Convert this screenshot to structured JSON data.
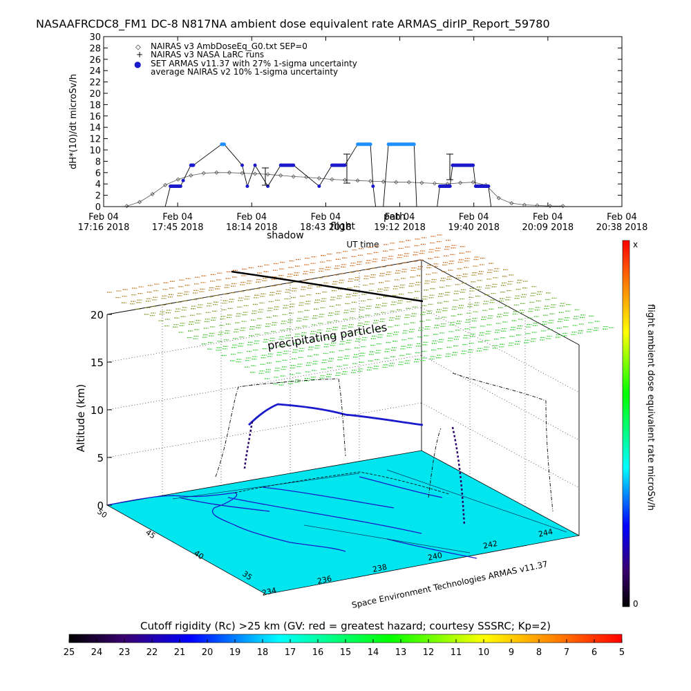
{
  "title": "NASAAFRCDC8_FM1 DC-8    N817NA ambient dose equivalent rate ARMAS_dirIP_Report_59780",
  "colors": {
    "nairas_v3": "#555555",
    "armas": "#1a1acc",
    "armas_high": "#1e90ff",
    "ground": "#00e5ee",
    "precip_high": "#d2691e",
    "precip_low": "#32cd32"
  },
  "chart_data": [
    {
      "type": "line",
      "title": "",
      "xlabel": "UT time",
      "ylabel": "dH*(10)/dt microSv/h",
      "ylim": [
        0,
        30
      ],
      "yticks": [
        "0",
        "2",
        "4",
        "6",
        "8",
        "10",
        "12",
        "14",
        "16",
        "18",
        "20",
        "22",
        "24",
        "26",
        "28",
        "30"
      ],
      "xticks": [
        {
          "date": "Feb 04",
          "time": "17:16  2018"
        },
        {
          "date": "Feb 04",
          "time": "17:45  2018"
        },
        {
          "date": "Feb 04",
          "time": "18:14  2018"
        },
        {
          "date": "Feb 04",
          "time": "18:43  2018"
        },
        {
          "date": "Feb 04",
          "time": "19:12  2018"
        },
        {
          "date": "Feb 04",
          "time": "19:40  2018"
        },
        {
          "date": "Feb 04",
          "time": "20:09  2018"
        },
        {
          "date": "Feb 04",
          "time": "20:38  2018"
        }
      ],
      "annotations": [
        "shadow",
        "flight",
        "path"
      ],
      "legend": [
        {
          "symbol": "◇",
          "text": "NAIRAS v3 AmbDoseEq_G0.txt SEP=0"
        },
        {
          "symbol": "+",
          "text": "NAIRAS v3 NASA LaRC runs"
        },
        {
          "symbol": "●",
          "text": "SET ARMAS v11.37 with 27% 1-sigma uncertainty"
        },
        {
          "symbol": "",
          "text": "average NAIRAS v2 10% 1-sigma uncertainty"
        }
      ],
      "series": [
        {
          "name": "NAIRAS v3 AmbDoseEq_G0.txt SEP=0",
          "x": [
            "17:25",
            "17:30",
            "17:35",
            "17:40",
            "17:45",
            "17:50",
            "17:55",
            "18:00",
            "18:05",
            "18:10",
            "18:15",
            "18:20",
            "18:25",
            "18:30",
            "18:35",
            "18:40",
            "18:45",
            "18:50",
            "18:55",
            "19:00",
            "19:05",
            "19:10",
            "19:15",
            "19:20",
            "19:25",
            "19:30",
            "19:35",
            "19:40",
            "19:45",
            "19:50",
            "19:55",
            "20:00",
            "20:05",
            "20:10",
            "20:15"
          ],
          "y": [
            0.1,
            0.8,
            2.2,
            3.8,
            4.8,
            5.5,
            5.9,
            6.0,
            6.0,
            5.9,
            5.8,
            5.7,
            5.5,
            5.3,
            5.2,
            5.0,
            4.8,
            4.7,
            4.6,
            4.5,
            4.4,
            4.3,
            4.3,
            4.2,
            4.1,
            4.0,
            4.2,
            4.3,
            3.8,
            1.5,
            0.6,
            0.3,
            0.2,
            0.1,
            0.1
          ]
        },
        {
          "name": "SET ARMAS v11.37",
          "x": [
            "17:25",
            "17:40",
            "17:42",
            "17:46",
            "17:47",
            "17:50",
            "17:51",
            "18:02",
            "18:03",
            "18:10",
            "18:12",
            "18:15",
            "18:20",
            "18:25",
            "18:30",
            "18:40",
            "18:45",
            "18:50",
            "18:55",
            "19:00",
            "19:01",
            "19:02",
            "19:05",
            "19:07",
            "19:08",
            "19:17",
            "19:18",
            "19:26",
            "19:27",
            "19:31",
            "19:32",
            "19:40",
            "19:41",
            "19:46",
            "19:47"
          ],
          "y": [
            0,
            0,
            3.6,
            3.6,
            4.6,
            7.3,
            7.3,
            11.0,
            11.0,
            7.3,
            3.6,
            7.3,
            3.6,
            7.3,
            7.3,
            3.6,
            7.3,
            7.3,
            11.0,
            11.0,
            3.6,
            0,
            0,
            11.0,
            11.0,
            11.0,
            0,
            0,
            3.6,
            3.6,
            7.3,
            7.3,
            3.6,
            3.6,
            0
          ]
        }
      ]
    },
    {
      "type": "scatter",
      "title": "",
      "xlabel": "",
      "ylabel": "Altitude (km)",
      "zticks": [
        "0",
        "5",
        "10",
        "15",
        "20"
      ],
      "lat_ticks": [
        "50",
        "45",
        "40",
        "35"
      ],
      "lon_ticks": [
        "234",
        "236",
        "238",
        "240",
        "242",
        "244"
      ],
      "annotation": "precipitating particles",
      "credit": "Space Environment Technologies ARMAS v11.37"
    }
  ],
  "colorbar_right": {
    "label": "flight ambient dose equivalent rate microSv/h",
    "top_label": "x",
    "bottom_label": "0"
  },
  "colorbar_bottom": {
    "label": "Cutoff rigidity (Rc) >25 km (GV: red = greatest hazard; courtesy SSSRC; Kp=2)",
    "ticks": [
      "25",
      "24",
      "23",
      "22",
      "21",
      "20",
      "19",
      "18",
      "17",
      "16",
      "15",
      "14",
      "13",
      "12",
      "11",
      "10",
      "9",
      "8",
      "7",
      "6",
      "5"
    ]
  }
}
